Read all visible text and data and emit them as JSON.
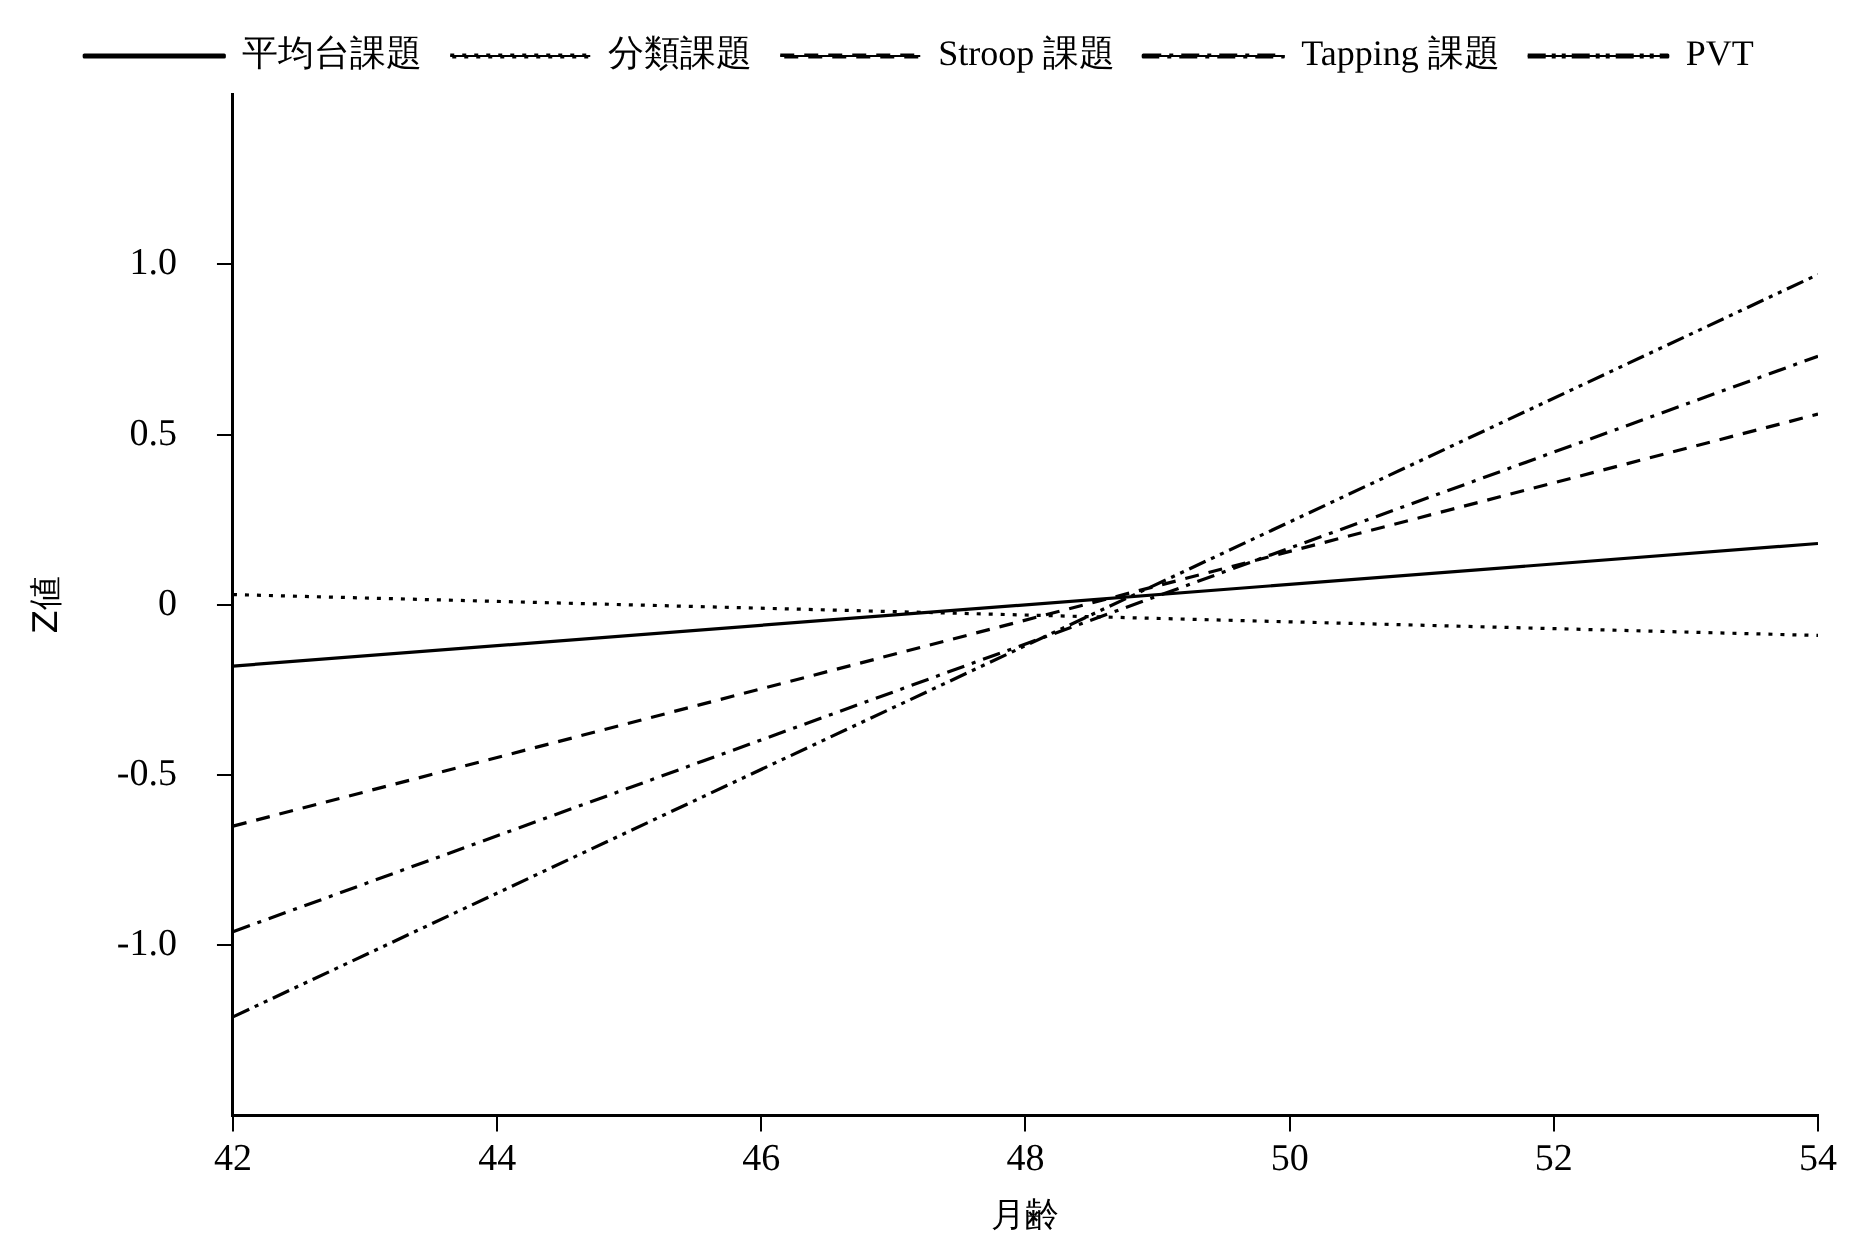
{
  "chart_data": {
    "type": "line",
    "xlabel": "月齢",
    "ylabel": "Z値",
    "x": [
      42,
      54
    ],
    "series": [
      {
        "name": "平均台課題",
        "color": "#000000",
        "values": [
          -0.18,
          0.18
        ],
        "line_style": "solid"
      },
      {
        "name": "分類課題",
        "color": "#000000",
        "values": [
          0.03,
          -0.09
        ],
        "line_style": "dotted"
      },
      {
        "name": "Stroop 課題",
        "color": "#000000",
        "values": [
          -0.65,
          0.56
        ],
        "line_style": "dashed"
      },
      {
        "name": "Tapping 課題",
        "color": "#000000",
        "values": [
          -0.96,
          0.73
        ],
        "line_style": "dashed"
      },
      {
        "name": "PVT",
        "color": "#000000",
        "values": [
          -1.21,
          0.97
        ],
        "line_style": "dashed"
      }
    ],
    "xlim": [
      42,
      54
    ],
    "xticks": [
      42,
      44,
      46,
      48,
      50,
      52,
      54
    ],
    "ylim": [
      -1.5,
      1.5
    ],
    "yticks": [
      {
        "value": 1,
        "label": "1.0"
      },
      {
        "value": 0.5,
        "label": "0.5"
      },
      {
        "value": 0,
        "label": "0"
      },
      {
        "value": -0.5,
        "label": "-0.5"
      },
      {
        "value": -1,
        "label": "-1.0"
      }
    ],
    "grid": false,
    "legend": "top",
    "marker": "none"
  }
}
